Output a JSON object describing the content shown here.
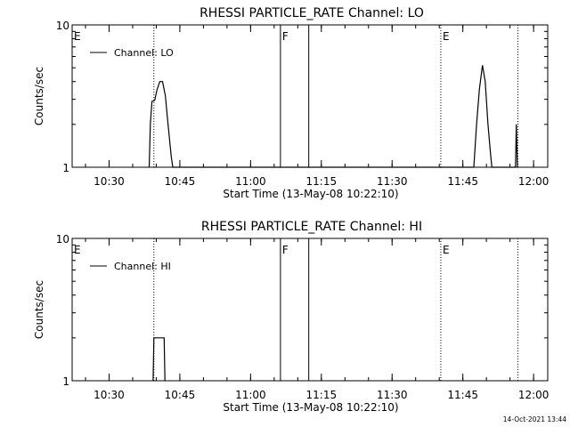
{
  "footer_timestamp": "14-Oct-2021 13:44",
  "chart_data": [
    {
      "type": "line",
      "title": "RHESSI PARTICLE_RATE Channel: LO",
      "xlabel": "Start Time (13-May-08 10:22:10)",
      "ylabel": "Counts/sec",
      "y_scale": "log",
      "ylim": [
        1,
        10
      ],
      "y_ticks": [
        {
          "value": 1,
          "label": "1"
        },
        {
          "value": 10,
          "label": "10"
        }
      ],
      "xlim": [
        "10:22:10",
        "12:03:00"
      ],
      "x_ticks": [
        "10:30",
        "10:45",
        "11:00",
        "11:15",
        "11:30",
        "11:45",
        "12:00"
      ],
      "legend": {
        "position": "top-left",
        "entries": [
          "Channel: LO"
        ]
      },
      "series": [
        {
          "name": "Channel: LO",
          "points": [
            [
              "10:38:30",
              1
            ],
            [
              "10:38:45",
              2.0
            ],
            [
              "10:39:05",
              2.9
            ],
            [
              "10:39:40",
              2.95
            ],
            [
              "10:40:10",
              3.5
            ],
            [
              "10:40:45",
              4.0
            ],
            [
              "10:41:20",
              4.0
            ],
            [
              "10:41:55",
              3.2
            ],
            [
              "10:42:30",
              2.0
            ],
            [
              "10:43:10",
              1.2
            ],
            [
              "10:43:30",
              1
            ],
            [
              "11:47:20",
              1
            ],
            [
              "11:47:55",
              2.0
            ],
            [
              "11:48:30",
              3.5
            ],
            [
              "11:49:10",
              5.2
            ],
            [
              "11:49:45",
              4.0
            ],
            [
              "11:50:20",
              2.0
            ],
            [
              "11:50:55",
              1.2
            ],
            [
              "11:51:10",
              1
            ],
            [
              "11:56:10",
              1
            ],
            [
              "11:56:20",
              2.0
            ],
            [
              "11:56:35",
              1
            ]
          ]
        }
      ],
      "markers": [
        {
          "label": "E",
          "time": "10:22:10",
          "style": "dotted"
        },
        {
          "label": "",
          "time": "10:39:30",
          "style": "dotted"
        },
        {
          "label": "F",
          "time": "11:06:20",
          "style": "solid"
        },
        {
          "label": "",
          "time": "11:12:20",
          "style": "solid"
        },
        {
          "label": "E",
          "time": "11:40:20",
          "style": "dotted"
        },
        {
          "label": "",
          "time": "11:56:40",
          "style": "dotted"
        }
      ]
    },
    {
      "type": "line",
      "title": "RHESSI PARTICLE_RATE Channel: HI",
      "xlabel": "Start Time (13-May-08 10:22:10)",
      "ylabel": "Counts/sec",
      "y_scale": "log",
      "ylim": [
        1,
        10
      ],
      "y_ticks": [
        {
          "value": 1,
          "label": "1"
        },
        {
          "value": 10,
          "label": "10"
        }
      ],
      "xlim": [
        "10:22:10",
        "12:03:00"
      ],
      "x_ticks": [
        "10:30",
        "10:45",
        "11:00",
        "11:15",
        "11:30",
        "11:45",
        "12:00"
      ],
      "legend": {
        "position": "top-left",
        "entries": [
          "Channel: HI"
        ]
      },
      "series": [
        {
          "name": "Channel: HI",
          "points": [
            [
              "10:39:20",
              1
            ],
            [
              "10:39:30",
              2.0
            ],
            [
              "10:41:40",
              2.0
            ],
            [
              "10:41:50",
              1
            ]
          ]
        }
      ],
      "markers": [
        {
          "label": "E",
          "time": "10:22:10",
          "style": "dotted"
        },
        {
          "label": "",
          "time": "10:39:30",
          "style": "dotted"
        },
        {
          "label": "F",
          "time": "11:06:20",
          "style": "solid"
        },
        {
          "label": "",
          "time": "11:12:20",
          "style": "solid"
        },
        {
          "label": "E",
          "time": "11:40:20",
          "style": "dotted"
        },
        {
          "label": "",
          "time": "11:56:40",
          "style": "dotted"
        }
      ]
    }
  ]
}
